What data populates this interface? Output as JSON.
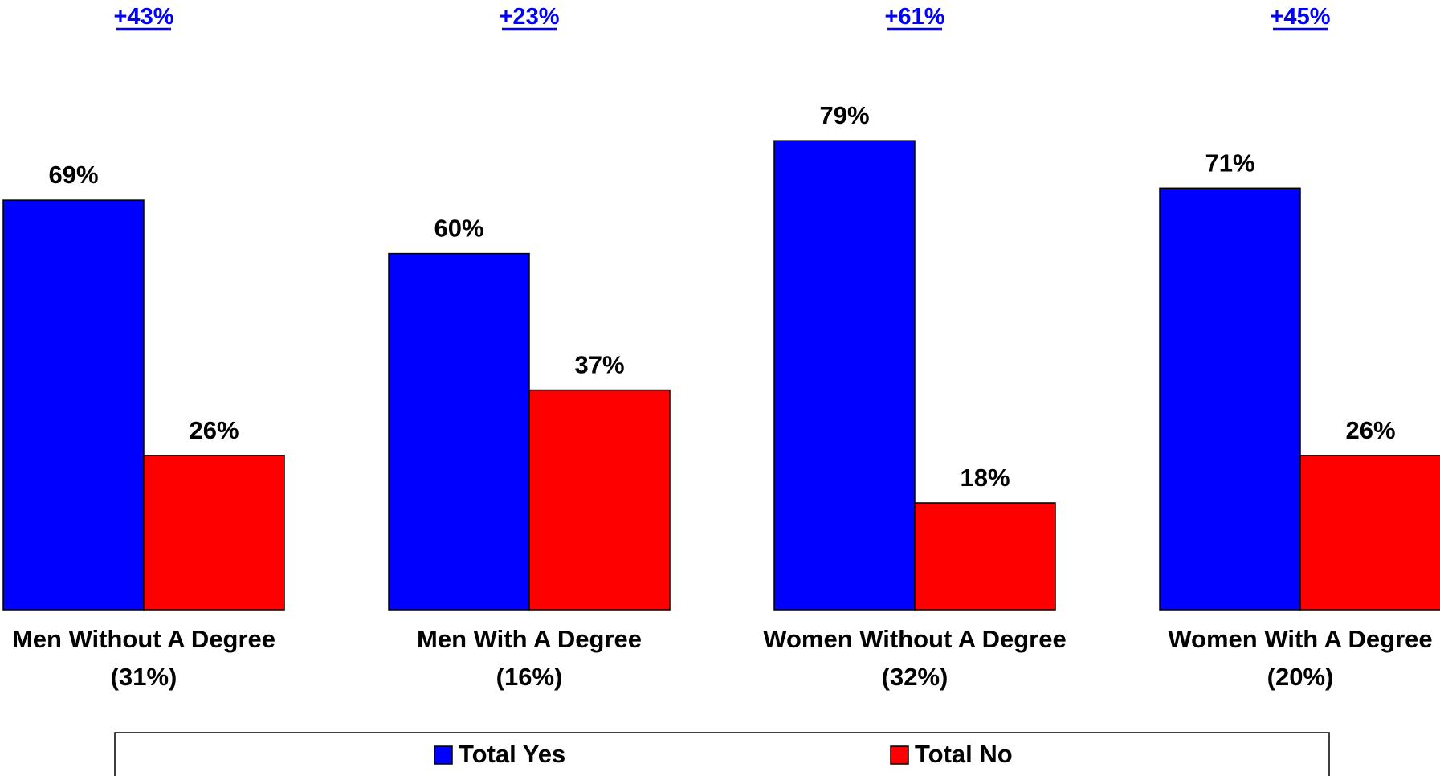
{
  "chart_data": {
    "type": "bar",
    "categories": [
      "Men Without A Degree",
      "Men With A Degree",
      "Women Without A Degree",
      "Women With A Degree"
    ],
    "category_shares": [
      "(31%)",
      "(16%)",
      "(32%)",
      "(20%)"
    ],
    "margins": [
      "+43%",
      "+23%",
      "+61%",
      "+45%"
    ],
    "series": [
      {
        "name": "Total Yes",
        "color": "#0000ff",
        "values": [
          69,
          60,
          79,
          71
        ]
      },
      {
        "name": "Total No",
        "color": "#ff0000",
        "values": [
          26,
          37,
          18,
          26
        ]
      }
    ],
    "value_suffix": "%",
    "ylim": [
      0,
      100
    ],
    "grid": false,
    "legend_position": "bottom"
  },
  "colors": {
    "margin_text": "#0000ff",
    "text": "#000000",
    "bar_outline": "#000000"
  }
}
